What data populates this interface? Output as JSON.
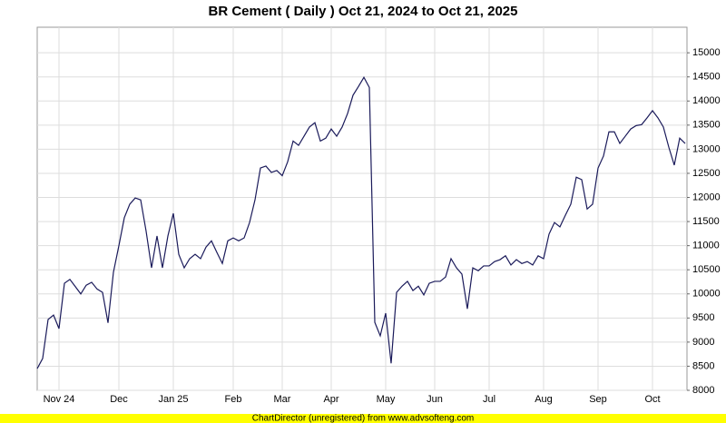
{
  "chart_data": {
    "type": "line",
    "title": "BR Cement ( Daily ) Oct 21, 2024 to Oct 21, 2025",
    "footer": "ChartDirector (unregistered) from www.advsofteng.com",
    "categories": [
      null,
      null,
      null,
      null,
      "Nov 24",
      null,
      null,
      null,
      null,
      null,
      null,
      null,
      null,
      null,
      null,
      "Dec",
      null,
      null,
      null,
      null,
      null,
      null,
      null,
      null,
      null,
      "Jan 25",
      null,
      null,
      null,
      null,
      null,
      null,
      null,
      null,
      null,
      null,
      "Feb",
      null,
      null,
      null,
      null,
      null,
      null,
      null,
      null,
      "Mar",
      null,
      null,
      null,
      null,
      null,
      null,
      null,
      null,
      "Apr",
      null,
      null,
      null,
      null,
      null,
      null,
      null,
      null,
      null,
      "May",
      null,
      null,
      null,
      null,
      null,
      null,
      null,
      null,
      "Jun",
      null,
      null,
      null,
      null,
      null,
      null,
      null,
      null,
      null,
      "Jul",
      null,
      null,
      null,
      null,
      null,
      null,
      null,
      null,
      null,
      "Aug",
      null,
      null,
      null,
      null,
      null,
      null,
      null,
      null,
      null,
      "Sep",
      null,
      null,
      null,
      null,
      null,
      null,
      null,
      null,
      null,
      "Oct",
      null,
      null,
      null,
      null,
      null,
      null
    ],
    "series": [
      {
        "name": "BR Cement",
        "color": "#1a1a5a",
        "values": [
          8450,
          8660,
          9470,
          9560,
          9280,
          10220,
          10300,
          10150,
          10000,
          10180,
          10240,
          10100,
          10030,
          9400,
          10450,
          11000,
          11580,
          11860,
          11990,
          11950,
          11300,
          10540,
          11200,
          10540,
          11200,
          11670,
          10820,
          10540,
          10730,
          10820,
          10730,
          10970,
          11100,
          10860,
          10630,
          11100,
          11160,
          11100,
          11160,
          11480,
          11950,
          12610,
          12650,
          12520,
          12560,
          12450,
          12740,
          13170,
          13080,
          13270,
          13460,
          13550,
          13170,
          13230,
          13420,
          13270,
          13460,
          13740,
          14120,
          14300,
          14490,
          14280,
          9410,
          9130,
          9600,
          8560,
          10030,
          10160,
          10260,
          10070,
          10160,
          9980,
          10220,
          10260,
          10260,
          10350,
          10730,
          10540,
          10410,
          9690,
          10540,
          10480,
          10580,
          10580,
          10670,
          10710,
          10790,
          10600,
          10710,
          10630,
          10670,
          10600,
          10790,
          10730,
          11240,
          11480,
          11390,
          11630,
          11860,
          12420,
          12370,
          11760,
          11860,
          12610,
          12860,
          13360,
          13360,
          13120,
          13270,
          13420,
          13490,
          13510,
          13650,
          13800,
          13650,
          13460,
          13040,
          12670,
          13230,
          13120
        ]
      }
    ],
    "ylim": [
      8000,
      15530
    ],
    "yticks": [
      8000,
      8500,
      9000,
      9500,
      10000,
      10500,
      11000,
      11500,
      12000,
      12500,
      13000,
      13500,
      14000,
      14500,
      15000
    ],
    "grid": true
  }
}
